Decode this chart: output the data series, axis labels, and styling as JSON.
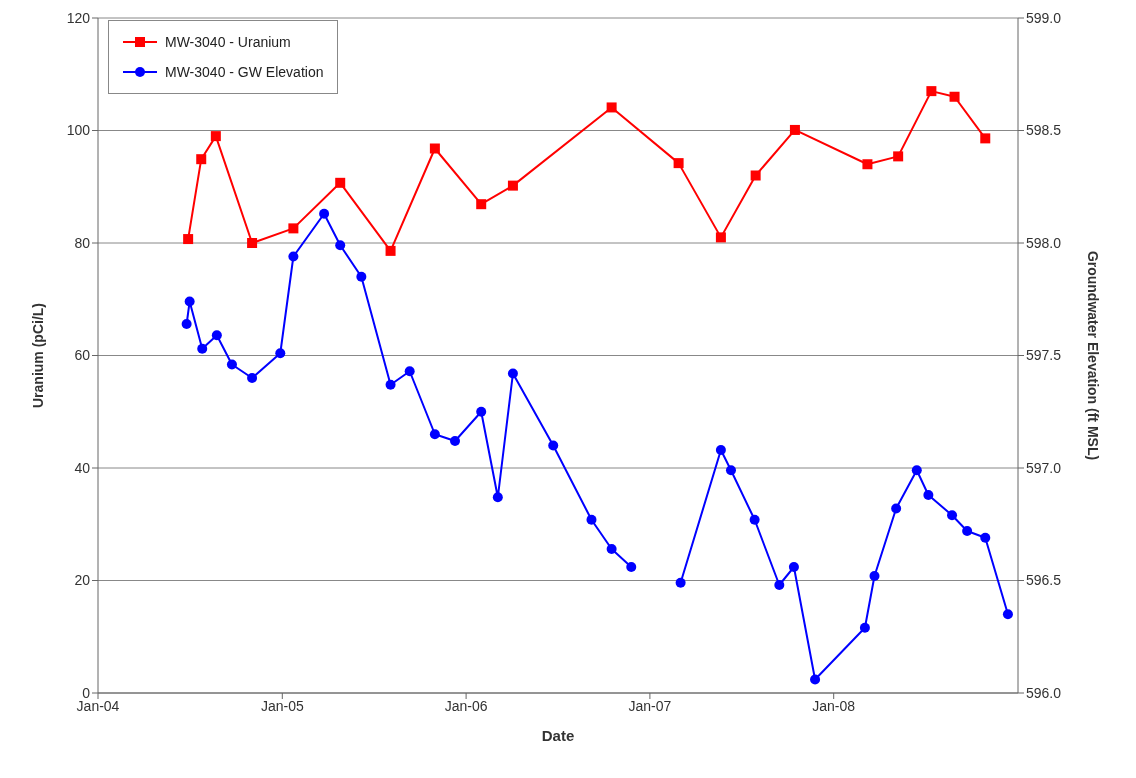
{
  "chart_data": {
    "type": "line",
    "xlabel": "Date",
    "ylabel": "Uranium (pCi/L)",
    "y2label": "Groundwater Elevation (ft MSL)",
    "xlim": [
      "2004-01-01",
      "2009-01-01"
    ],
    "xticks": [
      {
        "value": "2004-01-01",
        "label": "Jan-04"
      },
      {
        "value": "2005-01-01",
        "label": "Jan-05"
      },
      {
        "value": "2006-01-01",
        "label": "Jan-06"
      },
      {
        "value": "2007-01-01",
        "label": "Jan-07"
      },
      {
        "value": "2008-01-01",
        "label": "Jan-08"
      }
    ],
    "ylim": [
      0,
      120
    ],
    "yticks": [
      0,
      20,
      40,
      60,
      80,
      100,
      120
    ],
    "y2lim": [
      596,
      599
    ],
    "y2ticks": [
      {
        "value": 596,
        "label": "596.0"
      },
      {
        "value": 596.5,
        "label": "596.5"
      },
      {
        "value": 597,
        "label": "597.0"
      },
      {
        "value": 597.5,
        "label": "597.5"
      },
      {
        "value": 598,
        "label": "598.0"
      },
      {
        "value": 598.5,
        "label": "598.5"
      },
      {
        "value": 599,
        "label": "599.0"
      }
    ],
    "grid": "y",
    "legend": "top left",
    "line_style": "solid",
    "series": [
      {
        "name": "MW-3040 - Uranium",
        "color": "#ff0000",
        "marker": "square",
        "x": [
          "2004-06-28",
          "2004-07-24",
          "2004-08-22",
          "2004-11-02",
          "2005-01-23",
          "2005-04-26",
          "2005-08-04",
          "2005-10-31",
          "2006-01-31",
          "2006-04-04",
          "2006-10-17",
          "2007-02-27",
          "2007-05-22",
          "2007-07-30",
          "2007-10-16",
          "2008-03-08",
          "2008-05-08",
          "2008-07-13",
          "2008-08-28",
          "2008-10-28"
        ],
        "values": [
          80.7,
          94.9,
          99.0,
          80.0,
          82.6,
          90.7,
          78.6,
          96.8,
          86.9,
          90.2,
          104.1,
          94.2,
          81.0,
          92.0,
          100.1,
          94.0,
          95.4,
          107.0,
          106.0,
          98.6
        ]
      },
      {
        "name": "MW-3040 - GW Elevation",
        "color": "#0000ff",
        "marker": "circle",
        "axis": "y2",
        "x": [
          "2004-06-25",
          "2004-07-01",
          "2004-07-26",
          "2004-08-24",
          "2004-09-23",
          "2004-11-02",
          "2004-12-28",
          "2005-01-23",
          "2005-03-25",
          "2005-04-26",
          "2005-06-07",
          "2005-08-04",
          "2005-09-11",
          "2005-10-31",
          "2005-12-10",
          "2006-01-31",
          "2006-03-05",
          "2006-04-04",
          "2006-06-23",
          "2006-09-07",
          "2006-10-17",
          "2006-11-25",
          "2007-01-15",
          "2007-03-03",
          "2007-05-22",
          "2007-06-11",
          "2007-07-28",
          "2007-09-15",
          "2007-10-14",
          "2007-11-25",
          "2008-03-03",
          "2008-03-22",
          "2008-05-04",
          "2008-06-14",
          "2008-07-07",
          "2008-08-23",
          "2008-09-22",
          "2008-10-28",
          "2008-12-12"
        ],
        "values": [
          597.64,
          597.74,
          597.53,
          597.59,
          597.46,
          597.4,
          597.51,
          597.94,
          598.13,
          597.99,
          597.85,
          597.37,
          597.43,
          597.15,
          597.12,
          597.25,
          596.87,
          597.42,
          597.1,
          596.77,
          596.64,
          596.56,
          null,
          596.49,
          597.08,
          596.99,
          596.77,
          596.48,
          596.56,
          596.06,
          596.29,
          596.52,
          596.82,
          596.99,
          596.88,
          596.79,
          596.72,
          596.69,
          596.35
        ]
      }
    ]
  }
}
